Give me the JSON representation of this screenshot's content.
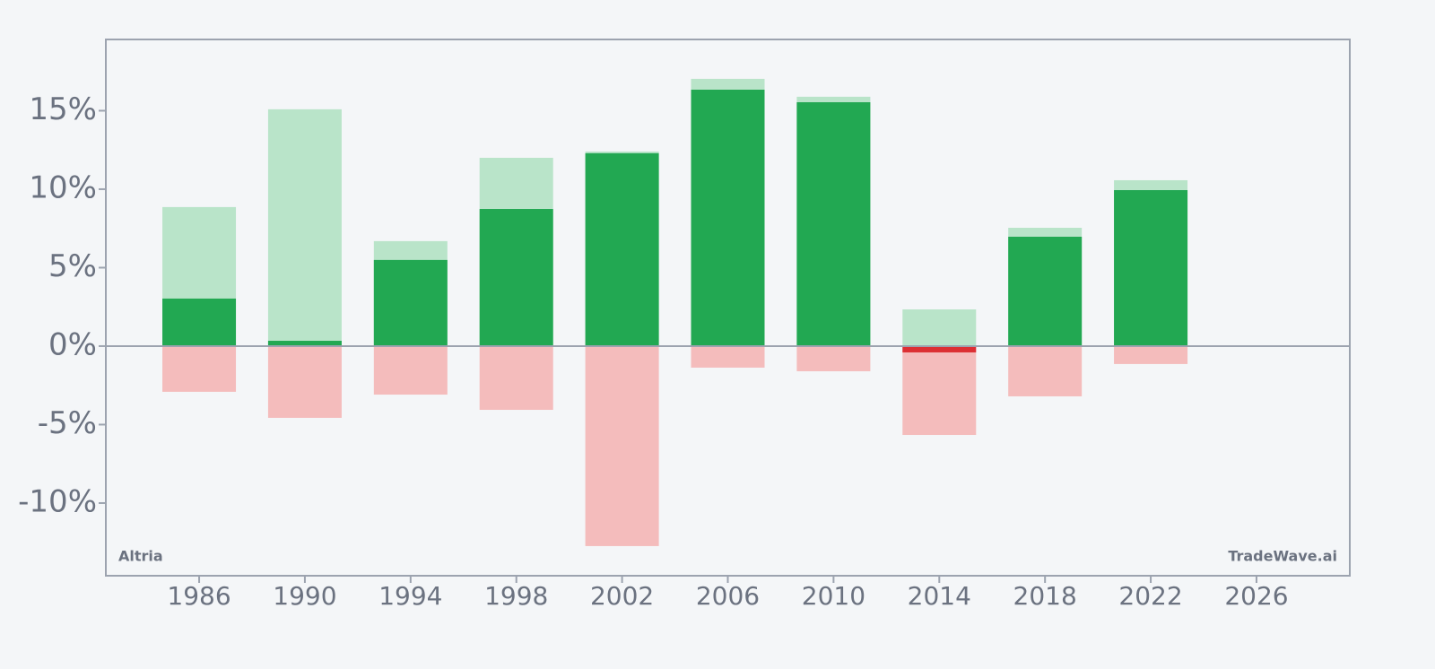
{
  "chart_data": {
    "type": "bar",
    "x": [
      1986,
      1990,
      1994,
      1998,
      2002,
      2006,
      2010,
      2014,
      2018,
      2022
    ],
    "series": [
      {
        "color": "#b9e4c9",
        "values": [
          8.86,
          15.09,
          6.69,
          12.0,
          12.4,
          17.03,
          15.89,
          2.34,
          7.54,
          10.57
        ]
      },
      {
        "color": "#f4bcbc",
        "values": [
          -2.91,
          -4.57,
          -3.09,
          -4.06,
          -12.74,
          -1.37,
          -1.6,
          -5.66,
          -3.2,
          -1.14
        ]
      },
      {
        "color": "#22a852",
        "negative_color": "#dc2f33",
        "values": [
          3.03,
          0.34,
          5.49,
          8.74,
          12.29,
          16.34,
          15.54,
          -0.4,
          6.97,
          9.94
        ]
      }
    ],
    "xlim": [
      1982.47,
      2029.53
    ],
    "xticks": [
      1986,
      1990,
      1994,
      1998,
      2002,
      2006,
      2010,
      2014,
      2018,
      2022,
      2026
    ],
    "ylim": [
      -14.63,
      19.54
    ],
    "yticks": [
      {
        "value": -10,
        "label": "-10%"
      },
      {
        "value": -5,
        "label": "-5%"
      },
      {
        "value": 0,
        "label": "0%"
      },
      {
        "value": 5,
        "label": "5%"
      },
      {
        "value": 10,
        "label": "10%"
      },
      {
        "value": 15,
        "label": "15%"
      }
    ],
    "annotations": [
      "Altria",
      "TradeWave.ai"
    ]
  }
}
